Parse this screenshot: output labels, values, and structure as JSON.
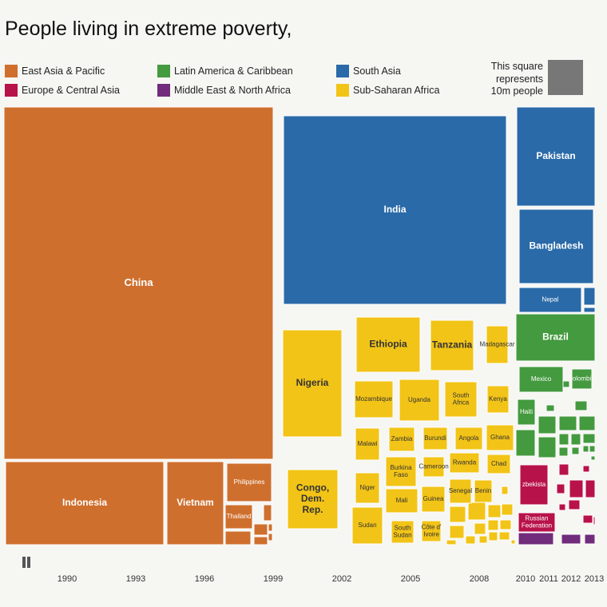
{
  "title": "People living in extreme poverty,",
  "legend": [
    {
      "label": "East Asia & Pacific",
      "color": "#cf6f2e"
    },
    {
      "label": "Latin America & Caribbean",
      "color": "#449a3f"
    },
    {
      "label": "South Asia",
      "color": "#2a6aa8"
    },
    {
      "label": "Europe & Central Asia",
      "color": "#b8124a"
    },
    {
      "label": "Middle East & North Africa",
      "color": "#712c7c"
    },
    {
      "label": "Sub-Saharan Africa",
      "color": "#f2c417"
    }
  ],
  "scale_note": {
    "line1": "This square",
    "line2": "represents",
    "line3": "10m people"
  },
  "timeline": {
    "years": [
      "1990",
      "1993",
      "1996",
      "1999",
      "2002",
      "2005",
      "2008",
      "2010",
      "2011",
      "2012",
      "2013"
    ],
    "control_icon": "pause-icon"
  },
  "chart_data": {
    "type": "treemap",
    "countries": [
      {
        "name": "China",
        "region": "East Asia & Pacific"
      },
      {
        "name": "Indonesia",
        "region": "East Asia & Pacific"
      },
      {
        "name": "Vietnam",
        "region": "East Asia & Pacific"
      },
      {
        "name": "Philippines",
        "region": "East Asia & Pacific"
      },
      {
        "name": "Thailand",
        "region": "East Asia & Pacific"
      },
      {
        "name": "India",
        "region": "South Asia"
      },
      {
        "name": "Pakistan",
        "region": "South Asia"
      },
      {
        "name": "Bangladesh",
        "region": "South Asia"
      },
      {
        "name": "Nepal",
        "region": "South Asia"
      },
      {
        "name": "Nigeria",
        "region": "Sub-Saharan Africa"
      },
      {
        "name": "Ethiopia",
        "region": "Sub-Saharan Africa"
      },
      {
        "name": "Tanzania",
        "region": "Sub-Saharan Africa"
      },
      {
        "name": "Madagascar",
        "region": "Sub-Saharan Africa"
      },
      {
        "name": "Mozambique",
        "region": "Sub-Saharan Africa"
      },
      {
        "name": "Uganda",
        "region": "Sub-Saharan Africa"
      },
      {
        "name": "South Africa",
        "region": "Sub-Saharan Africa"
      },
      {
        "name": "Kenya",
        "region": "Sub-Saharan Africa"
      },
      {
        "name": "Malawi",
        "region": "Sub-Saharan Africa"
      },
      {
        "name": "Zambia",
        "region": "Sub-Saharan Africa"
      },
      {
        "name": "Burundi",
        "region": "Sub-Saharan Africa"
      },
      {
        "name": "Angola",
        "region": "Sub-Saharan Africa"
      },
      {
        "name": "Ghana",
        "region": "Sub-Saharan Africa"
      },
      {
        "name": "Burkina Faso",
        "region": "Sub-Saharan Africa"
      },
      {
        "name": "Cameroon",
        "region": "Sub-Saharan Africa"
      },
      {
        "name": "Rwanda",
        "region": "Sub-Saharan Africa"
      },
      {
        "name": "Chad",
        "region": "Sub-Saharan Africa"
      },
      {
        "name": "Niger",
        "region": "Sub-Saharan Africa"
      },
      {
        "name": "Mali",
        "region": "Sub-Saharan Africa"
      },
      {
        "name": "Guinea",
        "region": "Sub-Saharan Africa"
      },
      {
        "name": "Senegal",
        "region": "Sub-Saharan Africa"
      },
      {
        "name": "Benin",
        "region": "Sub-Saharan Africa"
      },
      {
        "name": "Congo, Dem. Rep.",
        "region": "Sub-Saharan Africa"
      },
      {
        "name": "Sudan",
        "region": "Sub-Saharan Africa"
      },
      {
        "name": "South Sudan",
        "region": "Sub-Saharan Africa"
      },
      {
        "name": "Côte d'Ivoire",
        "region": "Sub-Saharan Africa"
      },
      {
        "name": "Brazil",
        "region": "Latin America & Caribbean"
      },
      {
        "name": "Mexico",
        "region": "Latin America & Caribbean"
      },
      {
        "name": "Colombia",
        "region": "Latin America & Caribbean"
      },
      {
        "name": "Haiti",
        "region": "Latin America & Caribbean"
      },
      {
        "name": "Uzbekistan",
        "region": "Europe & Central Asia"
      },
      {
        "name": "Russian Federation",
        "region": "Europe & Central Asia"
      }
    ]
  }
}
